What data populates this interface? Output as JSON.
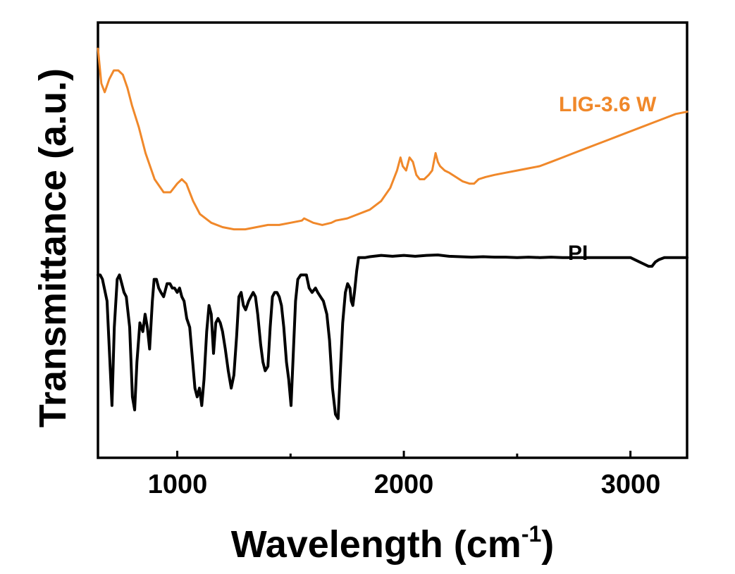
{
  "chart_data": {
    "type": "line",
    "xlabel": "Wavelength (cm",
    "xlabel_sup": "-1",
    "xlabel_close": ")",
    "ylabel": "Transmittance (a.u.)",
    "xlim": [
      650,
      3250
    ],
    "ylim": [
      0,
      1
    ],
    "x_ticks": [
      1000,
      2000,
      3000
    ],
    "x_minor_ticks": [
      1500,
      2500
    ],
    "y_ticks_shown": false,
    "grid": false,
    "series": [
      {
        "name": "LIG-3.6 W",
        "color": "#F0882A",
        "points": [
          [
            650,
            0.94
          ],
          [
            665,
            0.86
          ],
          [
            680,
            0.84
          ],
          [
            700,
            0.87
          ],
          [
            720,
            0.89
          ],
          [
            740,
            0.89
          ],
          [
            760,
            0.88
          ],
          [
            780,
            0.85
          ],
          [
            800,
            0.81
          ],
          [
            830,
            0.76
          ],
          [
            860,
            0.7
          ],
          [
            900,
            0.64
          ],
          [
            940,
            0.61
          ],
          [
            970,
            0.61
          ],
          [
            1000,
            0.63
          ],
          [
            1020,
            0.64
          ],
          [
            1040,
            0.63
          ],
          [
            1070,
            0.59
          ],
          [
            1100,
            0.56
          ],
          [
            1150,
            0.54
          ],
          [
            1200,
            0.53
          ],
          [
            1250,
            0.525
          ],
          [
            1300,
            0.525
          ],
          [
            1350,
            0.53
          ],
          [
            1400,
            0.535
          ],
          [
            1450,
            0.535
          ],
          [
            1500,
            0.54
          ],
          [
            1550,
            0.545
          ],
          [
            1560,
            0.55
          ],
          [
            1580,
            0.545
          ],
          [
            1600,
            0.54
          ],
          [
            1640,
            0.535
          ],
          [
            1680,
            0.54
          ],
          [
            1700,
            0.545
          ],
          [
            1750,
            0.55
          ],
          [
            1800,
            0.56
          ],
          [
            1850,
            0.57
          ],
          [
            1900,
            0.59
          ],
          [
            1940,
            0.62
          ],
          [
            1970,
            0.66
          ],
          [
            1985,
            0.69
          ],
          [
            1995,
            0.67
          ],
          [
            2010,
            0.66
          ],
          [
            2025,
            0.69
          ],
          [
            2040,
            0.68
          ],
          [
            2055,
            0.65
          ],
          [
            2070,
            0.64
          ],
          [
            2090,
            0.64
          ],
          [
            2110,
            0.65
          ],
          [
            2125,
            0.66
          ],
          [
            2140,
            0.7
          ],
          [
            2150,
            0.68
          ],
          [
            2160,
            0.67
          ],
          [
            2180,
            0.66
          ],
          [
            2200,
            0.655
          ],
          [
            2230,
            0.645
          ],
          [
            2260,
            0.635
          ],
          [
            2290,
            0.63
          ],
          [
            2310,
            0.63
          ],
          [
            2330,
            0.64
          ],
          [
            2360,
            0.645
          ],
          [
            2400,
            0.65
          ],
          [
            2450,
            0.655
          ],
          [
            2500,
            0.66
          ],
          [
            2550,
            0.665
          ],
          [
            2600,
            0.67
          ],
          [
            2650,
            0.68
          ],
          [
            2700,
            0.69
          ],
          [
            2750,
            0.7
          ],
          [
            2800,
            0.71
          ],
          [
            2850,
            0.72
          ],
          [
            2900,
            0.73
          ],
          [
            2950,
            0.74
          ],
          [
            3000,
            0.75
          ],
          [
            3050,
            0.76
          ],
          [
            3100,
            0.77
          ],
          [
            3150,
            0.78
          ],
          [
            3200,
            0.79
          ],
          [
            3250,
            0.795
          ]
        ]
      },
      {
        "name": "PI",
        "color": "#000000",
        "points": [
          [
            650,
            0.42
          ],
          [
            660,
            0.42
          ],
          [
            670,
            0.41
          ],
          [
            690,
            0.36
          ],
          [
            700,
            0.25
          ],
          [
            712,
            0.12
          ],
          [
            722,
            0.3
          ],
          [
            735,
            0.41
          ],
          [
            745,
            0.42
          ],
          [
            755,
            0.4
          ],
          [
            765,
            0.38
          ],
          [
            775,
            0.37
          ],
          [
            790,
            0.3
          ],
          [
            802,
            0.14
          ],
          [
            812,
            0.11
          ],
          [
            822,
            0.22
          ],
          [
            835,
            0.31
          ],
          [
            848,
            0.29
          ],
          [
            858,
            0.33
          ],
          [
            868,
            0.3
          ],
          [
            878,
            0.25
          ],
          [
            890,
            0.36
          ],
          [
            898,
            0.41
          ],
          [
            908,
            0.41
          ],
          [
            918,
            0.39
          ],
          [
            928,
            0.38
          ],
          [
            940,
            0.37
          ],
          [
            955,
            0.4
          ],
          [
            968,
            0.4
          ],
          [
            978,
            0.39
          ],
          [
            988,
            0.39
          ],
          [
            1000,
            0.38
          ],
          [
            1010,
            0.39
          ],
          [
            1020,
            0.37
          ],
          [
            1030,
            0.36
          ],
          [
            1042,
            0.32
          ],
          [
            1055,
            0.3
          ],
          [
            1065,
            0.24
          ],
          [
            1078,
            0.16
          ],
          [
            1088,
            0.14
          ],
          [
            1098,
            0.16
          ],
          [
            1108,
            0.12
          ],
          [
            1118,
            0.18
          ],
          [
            1130,
            0.29
          ],
          [
            1140,
            0.35
          ],
          [
            1150,
            0.33
          ],
          [
            1160,
            0.24
          ],
          [
            1170,
            0.31
          ],
          [
            1180,
            0.32
          ],
          [
            1190,
            0.31
          ],
          [
            1200,
            0.29
          ],
          [
            1212,
            0.25
          ],
          [
            1225,
            0.2
          ],
          [
            1238,
            0.16
          ],
          [
            1250,
            0.19
          ],
          [
            1262,
            0.28
          ],
          [
            1272,
            0.37
          ],
          [
            1282,
            0.38
          ],
          [
            1292,
            0.35
          ],
          [
            1302,
            0.34
          ],
          [
            1315,
            0.36
          ],
          [
            1325,
            0.37
          ],
          [
            1335,
            0.38
          ],
          [
            1345,
            0.37
          ],
          [
            1355,
            0.33
          ],
          [
            1368,
            0.26
          ],
          [
            1378,
            0.22
          ],
          [
            1388,
            0.2
          ],
          [
            1400,
            0.21
          ],
          [
            1410,
            0.3
          ],
          [
            1420,
            0.37
          ],
          [
            1430,
            0.38
          ],
          [
            1440,
            0.38
          ],
          [
            1450,
            0.37
          ],
          [
            1460,
            0.35
          ],
          [
            1470,
            0.3
          ],
          [
            1482,
            0.22
          ],
          [
            1492,
            0.18
          ],
          [
            1502,
            0.12
          ],
          [
            1512,
            0.24
          ],
          [
            1522,
            0.36
          ],
          [
            1532,
            0.41
          ],
          [
            1545,
            0.42
          ],
          [
            1558,
            0.42
          ],
          [
            1570,
            0.42
          ],
          [
            1582,
            0.39
          ],
          [
            1595,
            0.38
          ],
          [
            1610,
            0.39
          ],
          [
            1620,
            0.38
          ],
          [
            1632,
            0.37
          ],
          [
            1645,
            0.36
          ],
          [
            1660,
            0.33
          ],
          [
            1672,
            0.27
          ],
          [
            1685,
            0.16
          ],
          [
            1698,
            0.1
          ],
          [
            1710,
            0.09
          ],
          [
            1720,
            0.2
          ],
          [
            1730,
            0.31
          ],
          [
            1742,
            0.38
          ],
          [
            1752,
            0.4
          ],
          [
            1762,
            0.39
          ],
          [
            1768,
            0.36
          ],
          [
            1775,
            0.35
          ],
          [
            1782,
            0.38
          ],
          [
            1792,
            0.43
          ],
          [
            1800,
            0.46
          ],
          [
            1812,
            0.46
          ],
          [
            1830,
            0.46
          ],
          [
            1850,
            0.462
          ],
          [
            1900,
            0.465
          ],
          [
            1950,
            0.463
          ],
          [
            2000,
            0.465
          ],
          [
            2050,
            0.463
          ],
          [
            2100,
            0.465
          ],
          [
            2150,
            0.466
          ],
          [
            2200,
            0.463
          ],
          [
            2250,
            0.462
          ],
          [
            2300,
            0.461
          ],
          [
            2350,
            0.462
          ],
          [
            2400,
            0.461
          ],
          [
            2450,
            0.461
          ],
          [
            2500,
            0.46
          ],
          [
            2550,
            0.461
          ],
          [
            2600,
            0.46
          ],
          [
            2650,
            0.461
          ],
          [
            2700,
            0.46
          ],
          [
            2750,
            0.46
          ],
          [
            2800,
            0.46
          ],
          [
            2850,
            0.46
          ],
          [
            2900,
            0.46
          ],
          [
            2950,
            0.46
          ],
          [
            3000,
            0.46
          ],
          [
            3020,
            0.455
          ],
          [
            3040,
            0.45
          ],
          [
            3060,
            0.445
          ],
          [
            3080,
            0.44
          ],
          [
            3095,
            0.44
          ],
          [
            3110,
            0.45
          ],
          [
            3125,
            0.455
          ],
          [
            3150,
            0.46
          ],
          [
            3200,
            0.46
          ],
          [
            3250,
            0.46
          ]
        ]
      }
    ]
  }
}
